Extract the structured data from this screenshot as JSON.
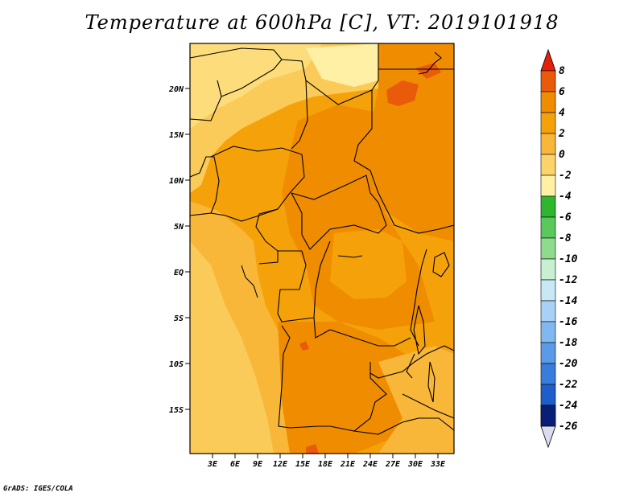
{
  "title": "Temperature at 600hPa [C], VT: 2019101918",
  "credit": "GrADS: IGES/COLA",
  "map": {
    "lat_labels": [
      "20N",
      "15N",
      "10N",
      "5N",
      "EQ",
      "5S",
      "10S",
      "15S"
    ],
    "lon_labels": [
      "3E",
      "6E",
      "9E",
      "12E",
      "15E",
      "18E",
      "21E",
      "24E",
      "27E",
      "30E",
      "33E"
    ],
    "colors": {
      "deep_orange": "#f08c00",
      "orange": "#f5a20a",
      "light_orange": "#f9b73a",
      "pale_orange": "#fbcb5a",
      "yellow": "#fddc7c",
      "pale_yellow": "#fff0a5",
      "red_orange": "#ea5a0b"
    }
  },
  "colorbar": {
    "labels": [
      "8",
      "6",
      "4",
      "2",
      "0",
      "-2",
      "-4",
      "-6",
      "-8",
      "-10",
      "-12",
      "-14",
      "-16",
      "-18",
      "-20",
      "-22",
      "-24",
      "-26"
    ],
    "colors": [
      "#e5200a",
      "#ea5a0b",
      "#f08c00",
      "#f5a20a",
      "#f9b73a",
      "#fbd36a",
      "#fff0a5",
      "#2fb52f",
      "#5ac85a",
      "#8edb8e",
      "#c8f0d0",
      "#c8e8f5",
      "#a8d2f5",
      "#82b8f0",
      "#5a9ae6",
      "#3a7cdc",
      "#1e5ec8",
      "#1040b0",
      "#0a1e78",
      "#dcdcf0"
    ]
  }
}
